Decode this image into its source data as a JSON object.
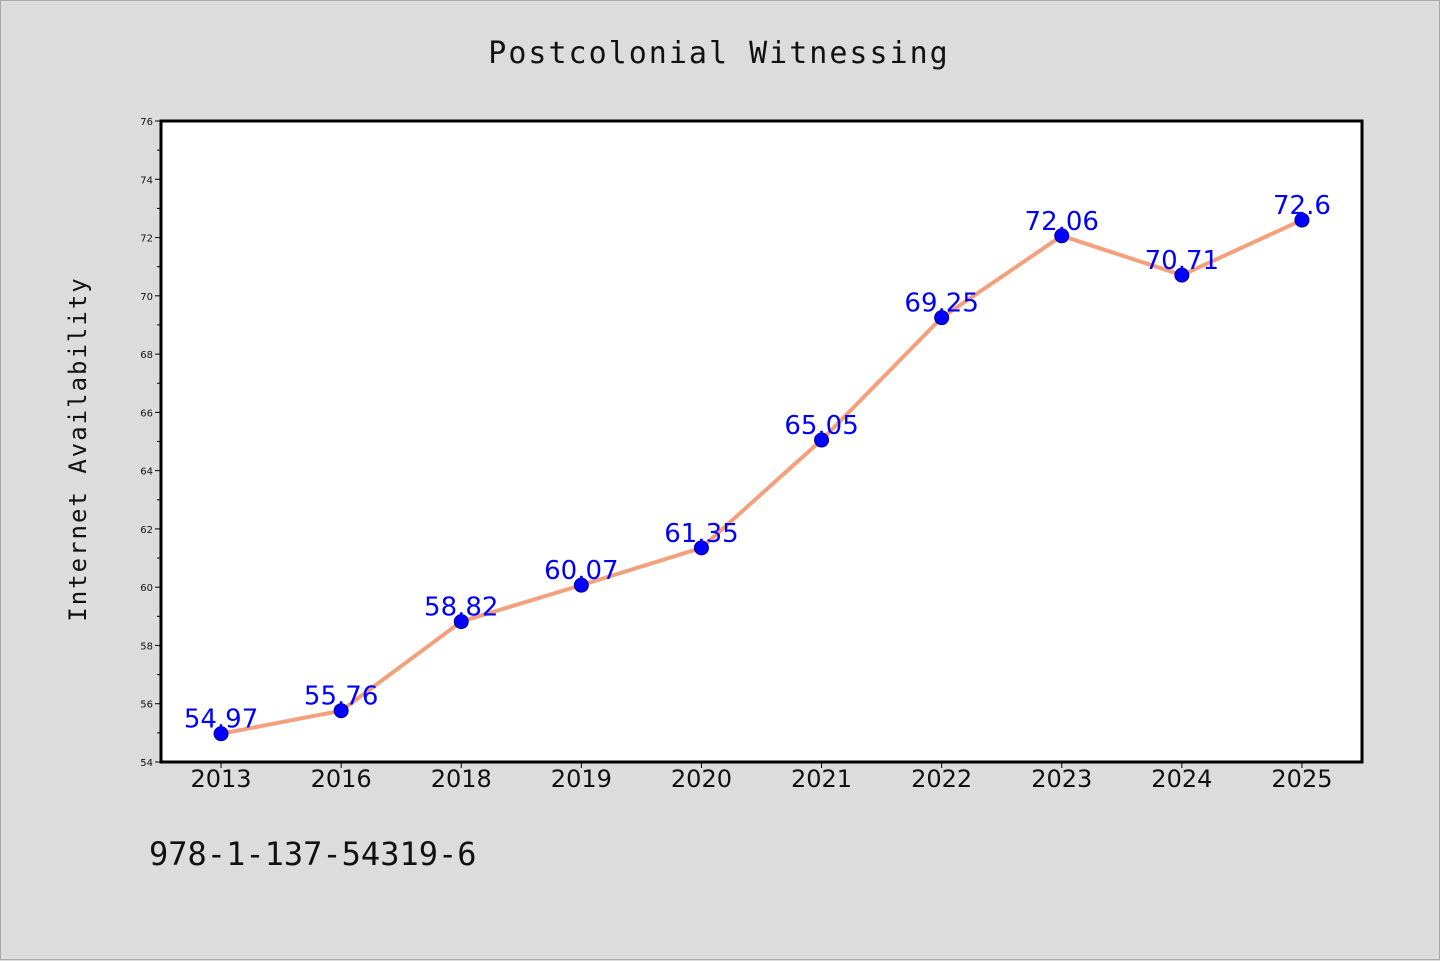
{
  "figure": {
    "isbn": "978-1-137-54319-6"
  },
  "chart_data": {
    "type": "line",
    "title": "Postcolonial Witnessing",
    "xlabel": "",
    "ylabel": "Internet Availability",
    "categories": [
      "2013",
      "2016",
      "2018",
      "2019",
      "2020",
      "2021",
      "2022",
      "2023",
      "2024",
      "2025"
    ],
    "series": [
      {
        "values": [
          54.97,
          55.76,
          58.82,
          60.07,
          61.35,
          65.05,
          69.25,
          72.06,
          70.71,
          72.6
        ],
        "line_color": "#f4a07c",
        "marker_color": "#0000ff",
        "label_color": "#0000ff"
      }
    ],
    "ylim": [
      54,
      76
    ],
    "yticks": [
      54,
      56,
      58,
      60,
      62,
      64,
      66,
      68,
      70,
      72,
      74,
      76
    ],
    "grid": false,
    "legend": "none",
    "data_labels": [
      "54.97",
      "55.76",
      "58.82",
      "60.07",
      "61.35",
      "65.05",
      "69.25",
      "72.06",
      "70.71",
      "72.6"
    ]
  }
}
